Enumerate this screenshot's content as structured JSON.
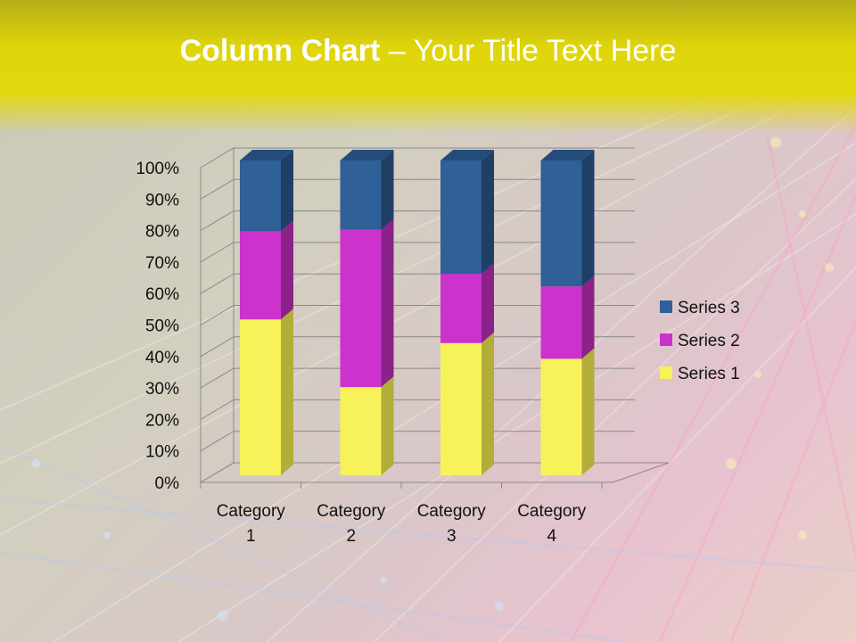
{
  "slide": {
    "title_bold": "Column Chart",
    "title_rest": " – Your Title Text Here"
  },
  "chart_data": {
    "type": "bar",
    "stacked": "percent",
    "style": "3d-columns",
    "title": "",
    "xlabel": "",
    "ylabel": "",
    "ylim": [
      0,
      100
    ],
    "y_ticks": [
      "0%",
      "10%",
      "20%",
      "30%",
      "40%",
      "50%",
      "60%",
      "70%",
      "80%",
      "90%",
      "100%"
    ],
    "categories": [
      "Category 1",
      "Category 2",
      "Category 3",
      "Category 4"
    ],
    "category_lines": [
      [
        "Category",
        "1"
      ],
      [
        "Category",
        "2"
      ],
      [
        "Category",
        "3"
      ],
      [
        "Category",
        "4"
      ]
    ],
    "series": [
      {
        "name": "Series 1",
        "values": [
          49.5,
          28,
          42,
          37
        ],
        "color": "#f7f25a",
        "side": "#b3ad3a"
      },
      {
        "name": "Series 2",
        "values": [
          28,
          50,
          22,
          23
        ],
        "color": "#cc33cc",
        "side": "#8a2289"
      },
      {
        "name": "Series 3",
        "values": [
          22.5,
          22,
          36,
          40
        ],
        "color": "#2f6097",
        "side": "#1f3f66"
      }
    ],
    "legend_position": "right",
    "grid": true
  }
}
